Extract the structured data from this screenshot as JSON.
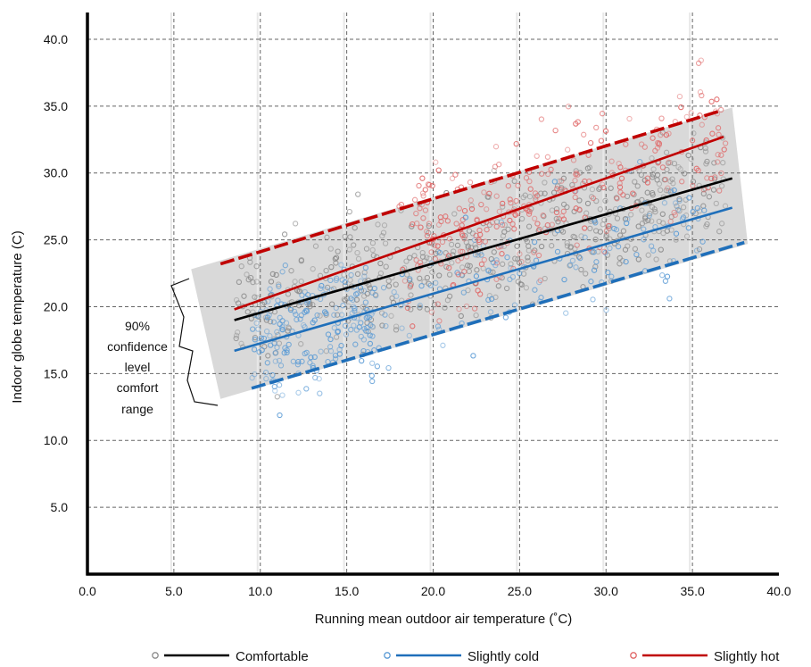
{
  "chart_data": {
    "type": "scatter",
    "title": "",
    "xlabel": "Running mean outdoor air temperature (˚C)",
    "ylabel": "Indoor globe temperature (C)",
    "xlim": [
      0,
      40
    ],
    "ylim": [
      0,
      42
    ],
    "x_ticks": [
      "0.0",
      "5.0",
      "10.0",
      "15.0",
      "20.0",
      "25.0",
      "30.0",
      "35.0",
      "40.0"
    ],
    "y_ticks": [
      "5.0",
      "10.0",
      "15.0",
      "20.0",
      "25.0",
      "30.0",
      "35.0",
      "40.0"
    ],
    "grid": true,
    "legend_position": "bottom",
    "series": [
      {
        "name": "Comfortable",
        "marker_color": "#8c8c8c",
        "line_color": "#000000",
        "fit_line": {
          "x": [
            8.5,
            37.3
          ],
          "y": [
            19.0,
            29.6
          ]
        }
      },
      {
        "name": "Slightly cold",
        "marker_color": "#5b9bd5",
        "line_color": "#1f6fba",
        "fit_line": {
          "x": [
            8.5,
            37.3
          ],
          "y": [
            16.7,
            27.4
          ]
        }
      },
      {
        "name": "Slightly hot",
        "marker_color": "#e06666",
        "line_color": "#c00000",
        "fit_line": {
          "x": [
            8.5,
            36.8
          ],
          "y": [
            19.8,
            32.7
          ]
        }
      }
    ],
    "confidence_band": {
      "upper": {
        "x": [
          7.7,
          36.5
        ],
        "y": [
          23.2,
          34.6
        ],
        "color": "#c00000"
      },
      "lower": {
        "x": [
          9.5,
          38.0
        ],
        "y": [
          13.9,
          24.8
        ],
        "color": "#1f6fba"
      },
      "fill": "#d9d9d9"
    },
    "annotation": {
      "lines": [
        "90%",
        "confidence",
        "level",
        "comfort",
        "range"
      ]
    }
  }
}
